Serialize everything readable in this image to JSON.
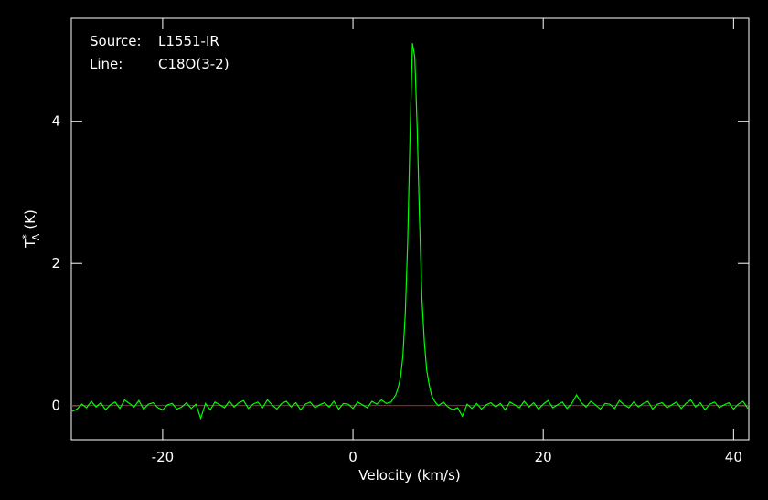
{
  "chart_data": {
    "type": "line",
    "xlabel": "Velocity (km/s)",
    "ylabel": {
      "main": "T",
      "sup": "*",
      "sub": "A",
      "unit": "(K)"
    },
    "annotations": [
      [
        "Source:",
        "L1551-IR"
      ],
      [
        "Line:",
        "C18O(3-2)"
      ]
    ],
    "xlim": [
      -29.6,
      41.6
    ],
    "ylim": [
      -0.48,
      5.45
    ],
    "xticks": [
      -20,
      0,
      20,
      40
    ],
    "yticks": [
      0,
      2,
      4
    ],
    "baseline_color": "#ff0000",
    "background": "#000000",
    "axis_color": "#ffffff",
    "x": [
      -29.5,
      -29,
      -28.5,
      -28,
      -27.5,
      -27,
      -26.5,
      -26,
      -25.5,
      -25,
      -24.5,
      -24,
      -23.5,
      -23,
      -22.5,
      -22,
      -21.5,
      -21,
      -20.5,
      -20,
      -19.5,
      -19,
      -18.5,
      -18,
      -17.5,
      -17,
      -16.5,
      -16,
      -15.5,
      -15,
      -14.5,
      -14,
      -13.5,
      -13,
      -12.5,
      -12,
      -11.5,
      -11,
      -10.5,
      -10,
      -9.5,
      -9,
      -8.5,
      -8,
      -7.5,
      -7,
      -6.5,
      -6,
      -5.5,
      -5,
      -4.5,
      -4,
      -3.5,
      -3,
      -2.5,
      -2,
      -1.5,
      -1,
      -0.5,
      0,
      0.5,
      1,
      1.5,
      2,
      2.5,
      3,
      3.5,
      4,
      4.25,
      4.5,
      4.75,
      5,
      5.25,
      5.5,
      5.75,
      6,
      6.25,
      6.5,
      6.75,
      7,
      7.25,
      7.5,
      7.75,
      8,
      8.25,
      8.5,
      8.75,
      9,
      9.5,
      10,
      10.5,
      11,
      11.5,
      12,
      12.5,
      13,
      13.5,
      14,
      14.5,
      15,
      15.5,
      16,
      16.5,
      17,
      17.5,
      18,
      18.5,
      19,
      19.5,
      20,
      20.5,
      21,
      21.5,
      22,
      22.5,
      23,
      23.5,
      24,
      24.5,
      25,
      25.5,
      26,
      26.5,
      27,
      27.5,
      28,
      28.5,
      29,
      29.5,
      30,
      30.5,
      31,
      31.5,
      32,
      32.5,
      33,
      33.5,
      34,
      34.5,
      35,
      35.5,
      36,
      36.5,
      37,
      37.5,
      38,
      38.5,
      39,
      39.5,
      40,
      40.5,
      41,
      41.5
    ],
    "series": [
      {
        "color": "#00ff00",
        "values": [
          -0.08,
          -0.05,
          0.02,
          -0.03,
          0.06,
          -0.02,
          0.04,
          -0.06,
          0.01,
          0.05,
          -0.04,
          0.08,
          0.03,
          -0.02,
          0.07,
          -0.05,
          0.02,
          0.04,
          -0.03,
          -0.06,
          0.01,
          0.03,
          -0.05,
          -0.02,
          0.04,
          -0.04,
          0.02,
          -0.18,
          0.03,
          -0.06,
          0.05,
          0.01,
          -0.03,
          0.06,
          -0.02,
          0.04,
          0.07,
          -0.04,
          0.02,
          0.05,
          -0.03,
          0.08,
          0.01,
          -0.05,
          0.03,
          0.06,
          -0.02,
          0.04,
          -0.06,
          0.02,
          0.05,
          -0.03,
          0.01,
          0.04,
          -0.02,
          0.06,
          -0.05,
          0.03,
          0.02,
          -0.04,
          0.05,
          0.01,
          -0.03,
          0.06,
          0.02,
          0.08,
          0.03,
          0.05,
          0.1,
          0.15,
          0.25,
          0.4,
          0.7,
          1.3,
          2.3,
          3.8,
          5.1,
          4.9,
          3.9,
          2.6,
          1.5,
          0.9,
          0.5,
          0.3,
          0.15,
          0.08,
          0.03,
          0.0,
          0.05,
          -0.02,
          -0.06,
          -0.03,
          -0.15,
          0.02,
          -0.04,
          0.03,
          -0.05,
          0.01,
          0.04,
          -0.02,
          0.03,
          -0.06,
          0.05,
          0.01,
          -0.03,
          0.06,
          -0.02,
          0.04,
          -0.05,
          0.02,
          0.07,
          -0.03,
          0.01,
          0.05,
          -0.04,
          0.03,
          0.15,
          0.04,
          -0.02,
          0.06,
          0.01,
          -0.05,
          0.03,
          0.02,
          -0.04,
          0.07,
          0.01,
          -0.03,
          0.05,
          -0.02,
          0.03,
          0.06,
          -0.05,
          0.02,
          0.04,
          -0.03,
          0.01,
          0.05,
          -0.04,
          0.03,
          0.08,
          -0.02,
          0.04,
          -0.06,
          0.02,
          0.05,
          -0.03,
          0.01,
          0.04,
          -0.05,
          0.02,
          0.06,
          -0.04
        ]
      }
    ]
  }
}
